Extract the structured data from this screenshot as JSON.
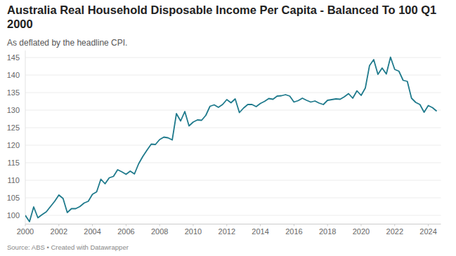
{
  "chart_data": {
    "type": "line",
    "title": "Australia Real Household Disposable Income Per Capita - Balanced To 100 Q1 2000",
    "subtitle": "As deflated by the headline CPI.",
    "source": "Source: ABS • Created with Datawrapper",
    "color": "#1f7a8c",
    "grid": true,
    "x": [
      2000,
      2000.25,
      2000.5,
      2000.75,
      2001,
      2001.25,
      2001.5,
      2001.75,
      2002,
      2002.25,
      2002.5,
      2002.75,
      2003,
      2003.25,
      2003.5,
      2003.75,
      2004,
      2004.25,
      2004.5,
      2004.75,
      2005,
      2005.25,
      2005.5,
      2005.75,
      2006,
      2006.25,
      2006.5,
      2006.75,
      2007,
      2007.25,
      2007.5,
      2007.75,
      2008,
      2008.25,
      2008.5,
      2008.75,
      2009,
      2009.25,
      2009.5,
      2009.75,
      2010,
      2010.25,
      2010.5,
      2010.75,
      2011,
      2011.25,
      2011.5,
      2011.75,
      2012,
      2012.25,
      2012.5,
      2012.75,
      2013,
      2013.25,
      2013.5,
      2013.75,
      2014,
      2014.25,
      2014.5,
      2014.75,
      2015,
      2015.25,
      2015.5,
      2015.75,
      2016,
      2016.25,
      2016.5,
      2016.75,
      2017,
      2017.25,
      2017.5,
      2017.75,
      2018,
      2018.25,
      2018.5,
      2018.75,
      2019,
      2019.25,
      2019.5,
      2019.75,
      2020,
      2020.25,
      2020.5,
      2020.75,
      2021,
      2021.25,
      2021.5,
      2021.75,
      2022,
      2022.25,
      2022.5,
      2022.75,
      2023,
      2023.25,
      2023.5,
      2023.75,
      2024,
      2024.25,
      2024.5
    ],
    "values": [
      100,
      98.2,
      102.4,
      99.3,
      100.2,
      101,
      102.5,
      104,
      105.8,
      104.8,
      100.8,
      101.9,
      101.9,
      102.5,
      103.5,
      104,
      106,
      106.7,
      110.3,
      109,
      110.7,
      111.1,
      113,
      112.4,
      111.7,
      112.6,
      111.8,
      114.7,
      116.8,
      118.6,
      120.3,
      120.2,
      121.6,
      122.3,
      122.1,
      121.5,
      129,
      126.9,
      129.6,
      125.5,
      126.6,
      127.2,
      127.1,
      128.5,
      131.1,
      131.5,
      130.8,
      131.6,
      133,
      132.1,
      133.2,
      129.3,
      130.6,
      131.6,
      131.6,
      131,
      131.9,
      132.5,
      133.3,
      133.1,
      134,
      134.1,
      134.4,
      134,
      132.3,
      132.7,
      133.4,
      132.8,
      132.3,
      132.6,
      132,
      131.6,
      132.8,
      133,
      133.2,
      133.1,
      133.8,
      134.7,
      133.4,
      135.5,
      134.2,
      136.3,
      142.7,
      144.4,
      140.2,
      142,
      140.3,
      145.1,
      141.6,
      141.1,
      138.5,
      138.2,
      133.4,
      132.2,
      131.6,
      129.4,
      131.3,
      130.7,
      129.7
    ],
    "xlim": [
      2000,
      2024.75
    ],
    "xticks": [
      2000,
      2002,
      2004,
      2006,
      2008,
      2010,
      2012,
      2014,
      2016,
      2018,
      2020,
      2022,
      2024
    ],
    "ylim": [
      97.5,
      147
    ],
    "yticks": [
      100,
      105,
      110,
      115,
      120,
      125,
      130,
      135,
      140,
      145
    ]
  }
}
